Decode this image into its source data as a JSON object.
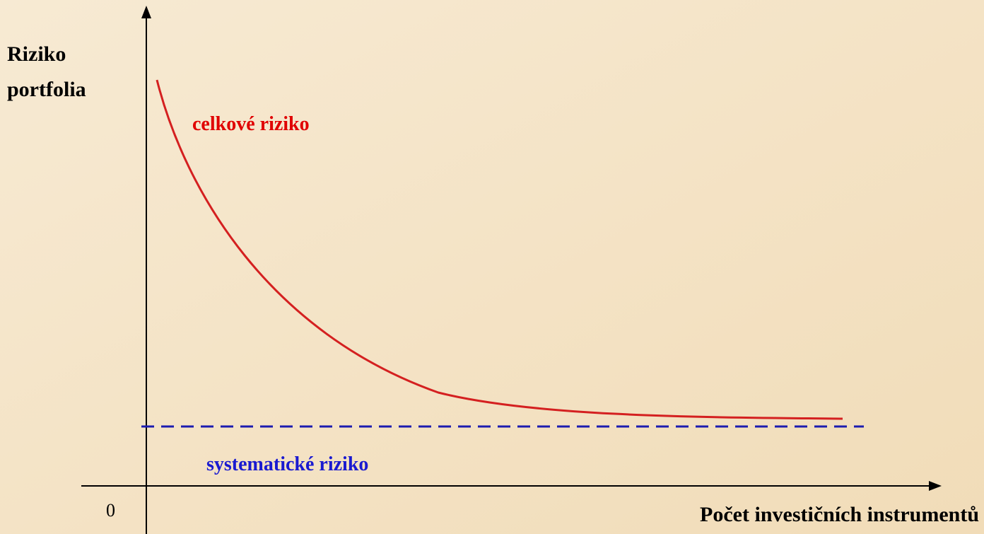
{
  "y_axis_label": [
    "Riziko",
    "portfolia"
  ],
  "total_risk_label": "celkové riziko",
  "systematic_risk_label": "systematické riziko",
  "origin_label": "0",
  "x_axis_label": "Počet investičních instrumentů"
}
